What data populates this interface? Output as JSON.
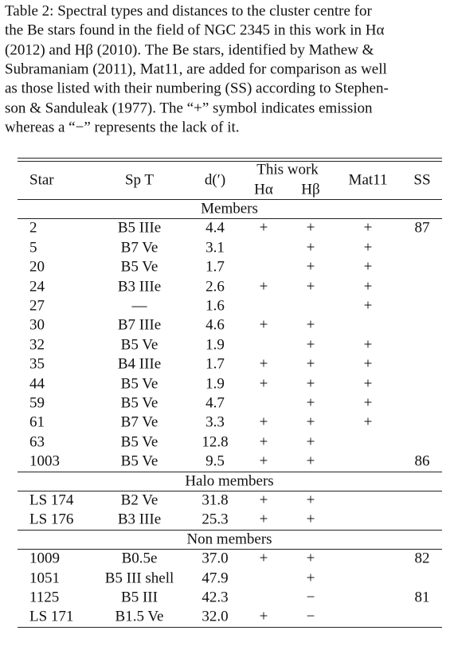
{
  "caption": [
    "Table 2: Spectral types and distances to the cluster centre for",
    "the Be stars found in the field of NGC 2345 in this work in Hα",
    "(2012) and Hβ (2010). The Be stars, identified by Mathew &",
    "Subramaniam (2011), Mat11, are added for comparison as well",
    "as those listed with their numbering (SS) according to Stephen-",
    "son & Sanduleak (1977). The “+” symbol indicates emission",
    "whereas a “−” represents the lack of it."
  ],
  "table": {
    "header": {
      "star": "Star",
      "spt": "Sp T",
      "d": "d(′)",
      "this_work": "This work",
      "ha": "Hα",
      "hb": "Hβ",
      "mat11": "Mat11",
      "ss": "SS"
    },
    "groups": [
      {
        "label": "Members",
        "rows": [
          [
            "2",
            "B5 IIIe",
            "4.4",
            "+",
            "+",
            "+",
            "87"
          ],
          [
            "5",
            "B7 Ve",
            "3.1",
            null,
            "+",
            "+",
            null
          ],
          [
            "20",
            "B5 Ve",
            "1.7",
            null,
            "+",
            "+",
            null
          ],
          [
            "24",
            "B3 IIIe",
            "2.6",
            "+",
            "+",
            "+",
            null
          ],
          [
            "27",
            "—",
            "1.6",
            null,
            null,
            "+",
            null
          ],
          [
            "30",
            "B7 IIIe",
            "4.6",
            "+",
            "+",
            null,
            null
          ],
          [
            "32",
            "B5 Ve",
            "1.9",
            null,
            "+",
            "+",
            null
          ],
          [
            "35",
            "B4 IIIe",
            "1.7",
            "+",
            "+",
            "+",
            null
          ],
          [
            "44",
            "B5 Ve",
            "1.9",
            "+",
            "+",
            "+",
            null
          ],
          [
            "59",
            "B5 Ve",
            "4.7",
            null,
            "+",
            "+",
            null
          ],
          [
            "61",
            "B7 Ve",
            "3.3",
            "+",
            "+",
            "+",
            null
          ],
          [
            "63",
            "B5 Ve",
            "12.8",
            "+",
            "+",
            null,
            null
          ],
          [
            "1003",
            "B5 Ve",
            "9.5",
            "+",
            "+",
            null,
            "86"
          ]
        ]
      },
      {
        "label": "Halo members",
        "rows": [
          [
            "LS 174",
            "B2 Ve",
            "31.8",
            "+",
            "+",
            null,
            null
          ],
          [
            "LS 176",
            "B3 IIIe",
            "25.3",
            "+",
            "+",
            null,
            null
          ]
        ]
      },
      {
        "label": "Non members",
        "rows": [
          [
            "1009",
            "B0.5e",
            "37.0",
            "+",
            "+",
            null,
            "82"
          ],
          [
            "1051",
            "B5 III shell",
            "47.9",
            null,
            "+",
            null,
            null
          ],
          [
            "1125",
            "B5 III",
            "42.3",
            null,
            "−",
            null,
            "81"
          ],
          [
            "LS 171",
            "B1.5 Ve",
            "32.0",
            "+",
            "−",
            null,
            null
          ]
        ]
      }
    ]
  }
}
